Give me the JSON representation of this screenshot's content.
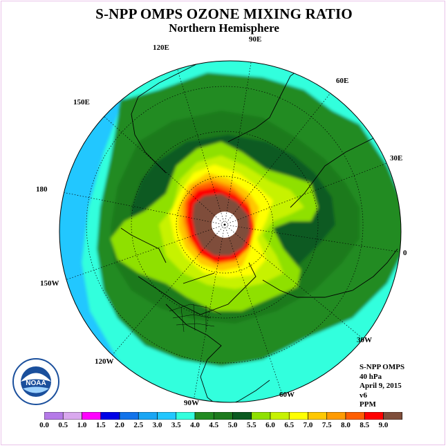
{
  "header": {
    "title": "S-NPP OMPS OZONE MIXING RATIO",
    "subtitle": "Northern Hemisphere"
  },
  "longitude_labels": [
    "90E",
    "60E",
    "30E",
    "0",
    "30W",
    "60W",
    "90W",
    "120W",
    "150W",
    "180",
    "150E",
    "120E"
  ],
  "info": {
    "instrument": "S-NPP OMPS",
    "level": "40 hPa",
    "date": "April 9, 2015",
    "version": "v6",
    "units": "PPM"
  },
  "logo": {
    "text": "NOAA"
  },
  "colorbar": {
    "ticks": [
      "0.0",
      "0.5",
      "1.0",
      "1.5",
      "2.0",
      "2.5",
      "3.0",
      "3.5",
      "4.0",
      "4.5",
      "5.0",
      "5.5",
      "6.0",
      "6.5",
      "7.0",
      "7.5",
      "8.0",
      "8.5",
      "9.0"
    ],
    "colors": [
      "#b57ae8",
      "#d9a8ee",
      "#ff00ff",
      "#0000e6",
      "#1273ea",
      "#1aa6f4",
      "#22c7ff",
      "#33ffdd",
      "#228b22",
      "#1d7a1d",
      "#0b5a20",
      "#8fe000",
      "#c7f200",
      "#ffff00",
      "#ffc800",
      "#ff9b00",
      "#ff5e00",
      "#ff0000",
      "#7f4e3b"
    ]
  }
}
